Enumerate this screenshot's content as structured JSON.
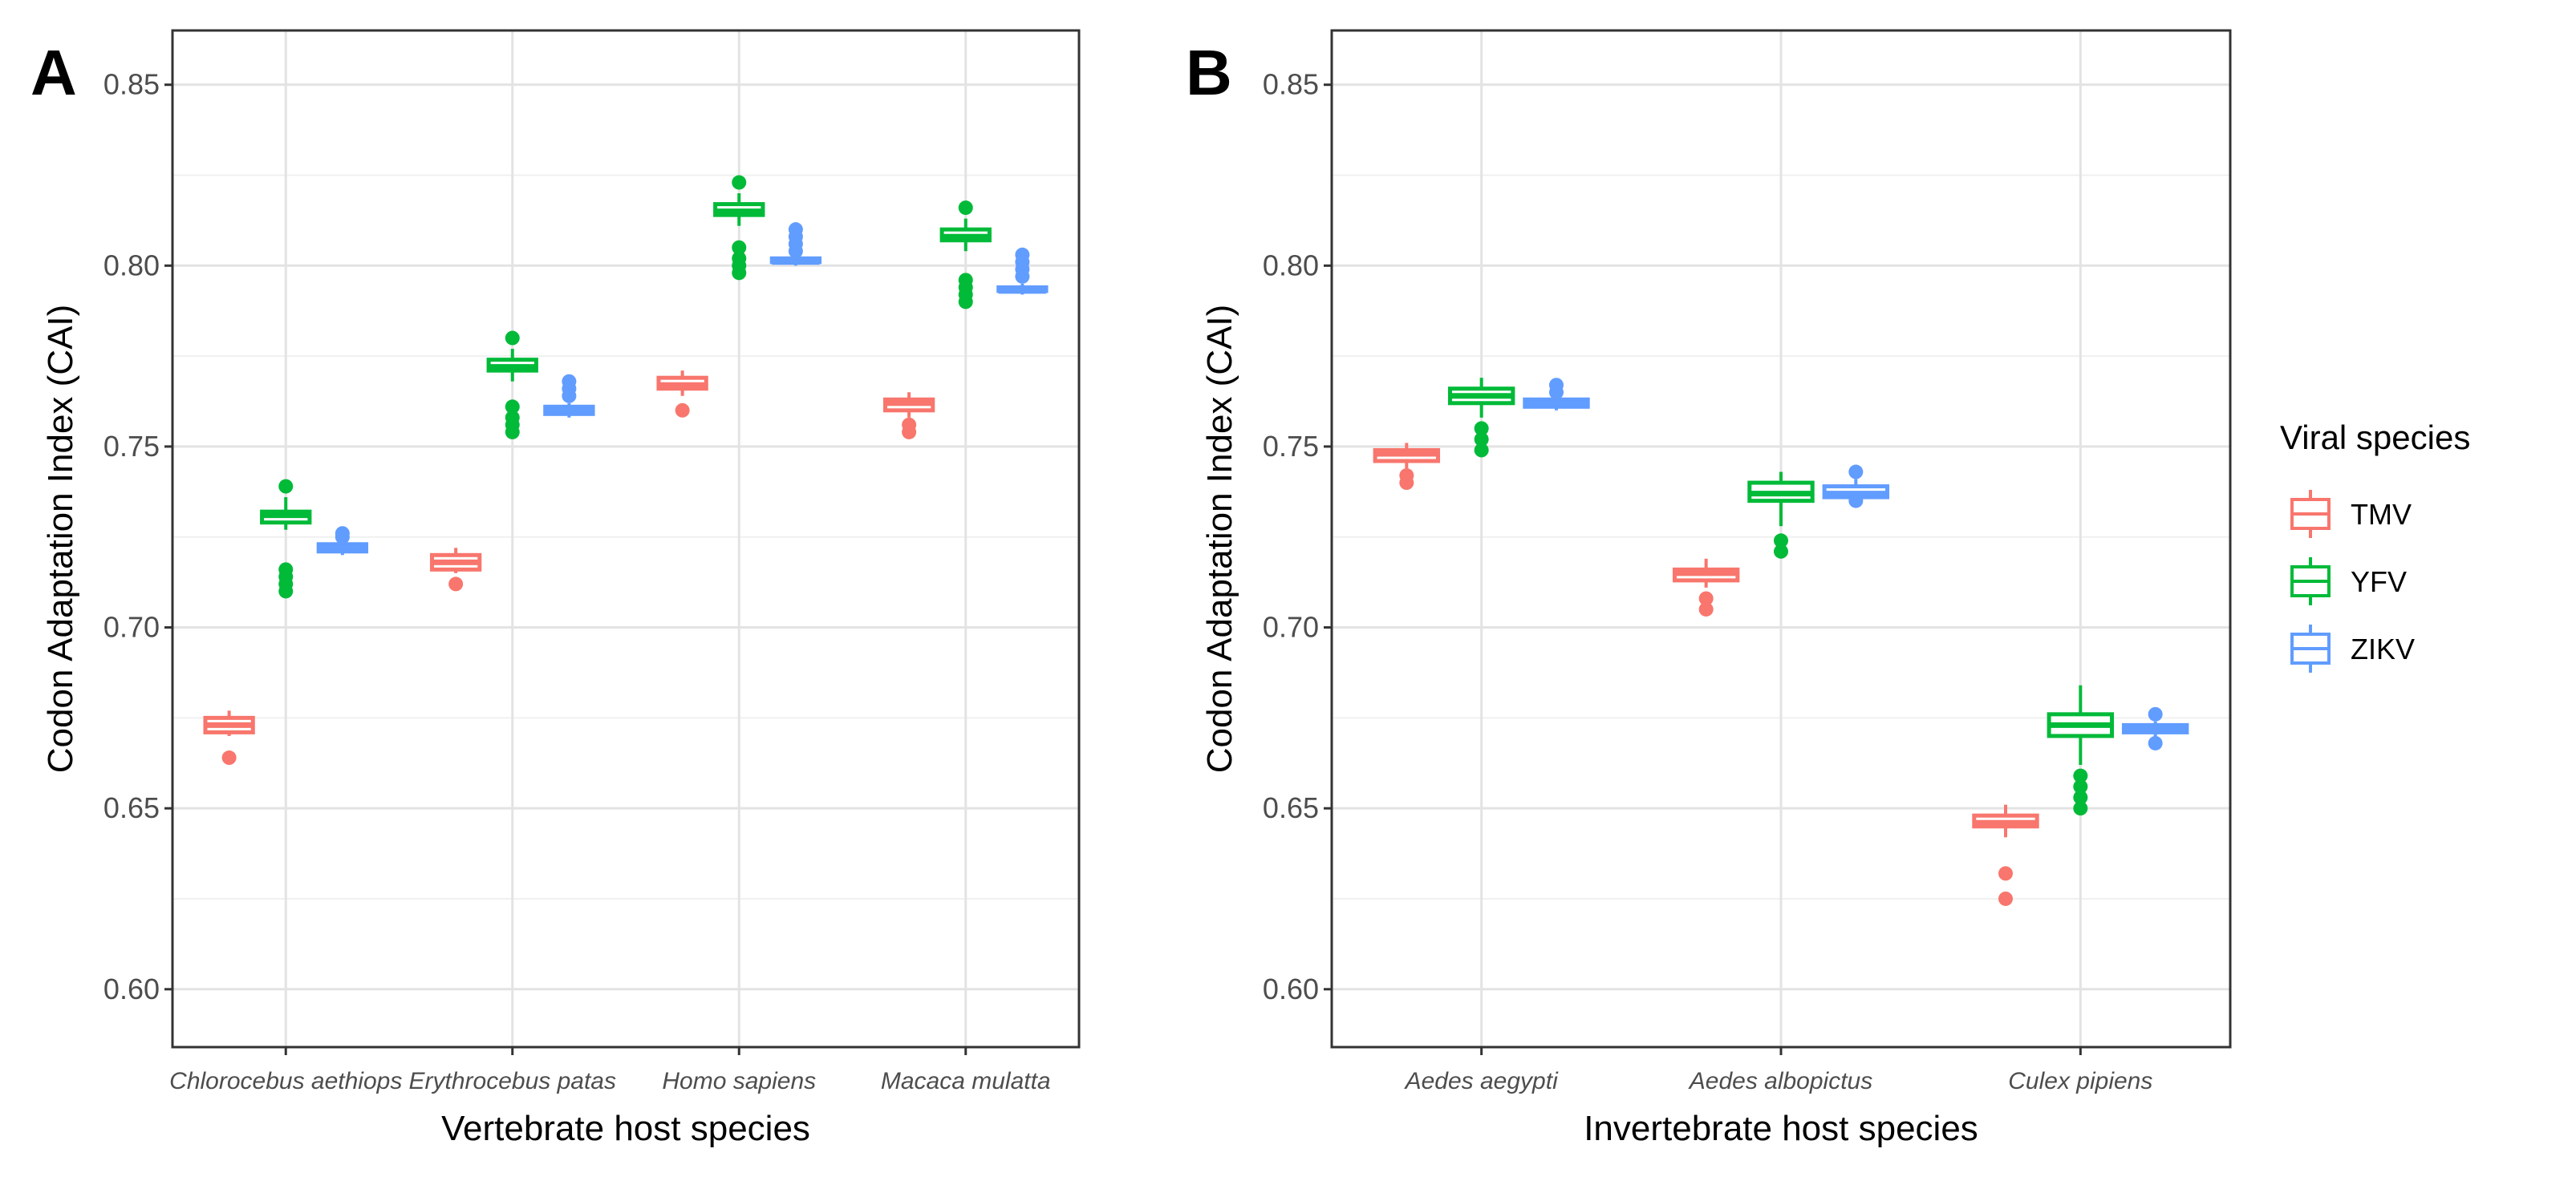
{
  "chart_data": [
    {
      "panel": "A",
      "type": "box",
      "xlabel": "Vertebrate host species",
      "ylabel": "Codon Adaptation Index (CAI)",
      "ylim": [
        0.584,
        0.865
      ],
      "yticks": [
        "0.60",
        "0.65",
        "0.70",
        "0.75",
        "0.80",
        "0.85"
      ],
      "categories": [
        "Chlorocebus aethiops",
        "Erythrocebus patas",
        "Homo sapiens",
        "Macaca mulatta"
      ],
      "series": [
        {
          "name": "TMV",
          "boxes": [
            {
              "q1": 0.671,
              "median": 0.673,
              "q3": 0.675,
              "whisker_low": 0.67,
              "whisker_high": 0.677,
              "outliers": [
                0.664
              ]
            },
            {
              "q1": 0.716,
              "median": 0.718,
              "q3": 0.72,
              "whisker_low": 0.715,
              "whisker_high": 0.722,
              "outliers": [
                0.712
              ]
            },
            {
              "q1": 0.766,
              "median": 0.767,
              "q3": 0.769,
              "whisker_low": 0.764,
              "whisker_high": 0.771,
              "outliers": [
                0.76
              ]
            },
            {
              "q1": 0.76,
              "median": 0.762,
              "q3": 0.763,
              "whisker_low": 0.758,
              "whisker_high": 0.765,
              "outliers": [
                0.754,
                0.756
              ]
            }
          ]
        },
        {
          "name": "YFV",
          "boxes": [
            {
              "q1": 0.729,
              "median": 0.731,
              "q3": 0.732,
              "whisker_low": 0.727,
              "whisker_high": 0.736,
              "outliers": [
                0.739,
                0.716,
                0.714,
                0.712,
                0.71
              ]
            },
            {
              "q1": 0.771,
              "median": 0.772,
              "q3": 0.774,
              "whisker_low": 0.768,
              "whisker_high": 0.777,
              "outliers": [
                0.78,
                0.761,
                0.758,
                0.756,
                0.754
              ]
            },
            {
              "q1": 0.814,
              "median": 0.815,
              "q3": 0.817,
              "whisker_low": 0.811,
              "whisker_high": 0.82,
              "outliers": [
                0.823,
                0.805,
                0.802,
                0.8,
                0.798
              ]
            },
            {
              "q1": 0.807,
              "median": 0.808,
              "q3": 0.81,
              "whisker_low": 0.804,
              "whisker_high": 0.813,
              "outliers": [
                0.816,
                0.796,
                0.794,
                0.792,
                0.79
              ]
            }
          ]
        },
        {
          "name": "ZIKV",
          "boxes": [
            {
              "q1": 0.721,
              "median": 0.722,
              "q3": 0.723,
              "whisker_low": 0.72,
              "whisker_high": 0.724,
              "outliers": [
                0.726,
                0.725
              ]
            },
            {
              "q1": 0.759,
              "median": 0.76,
              "q3": 0.761,
              "whisker_low": 0.758,
              "whisker_high": 0.762,
              "outliers": [
                0.768,
                0.766,
                0.764
              ]
            },
            {
              "q1": 0.801,
              "median": 0.801,
              "q3": 0.802,
              "whisker_low": 0.8,
              "whisker_high": 0.803,
              "outliers": [
                0.81,
                0.808,
                0.806,
                0.804
              ]
            },
            {
              "q1": 0.793,
              "median": 0.793,
              "q3": 0.794,
              "whisker_low": 0.792,
              "whisker_high": 0.795,
              "outliers": [
                0.803,
                0.801,
                0.799,
                0.797
              ]
            }
          ]
        }
      ]
    },
    {
      "panel": "B",
      "type": "box",
      "xlabel": "Invertebrate host species",
      "ylabel": "Codon Adaptation Index (CAI)",
      "ylim": [
        0.584,
        0.865
      ],
      "yticks": [
        "0.60",
        "0.65",
        "0.70",
        "0.75",
        "0.80",
        "0.85"
      ],
      "categories": [
        "Aedes aegypti",
        "Aedes albopictus",
        "Culex pipiens"
      ],
      "series": [
        {
          "name": "TMV",
          "boxes": [
            {
              "q1": 0.746,
              "median": 0.748,
              "q3": 0.749,
              "whisker_low": 0.744,
              "whisker_high": 0.751,
              "outliers": [
                0.74,
                0.742
              ]
            },
            {
              "q1": 0.713,
              "median": 0.715,
              "q3": 0.716,
              "whisker_low": 0.711,
              "whisker_high": 0.719,
              "outliers": [
                0.705,
                0.708
              ]
            },
            {
              "q1": 0.645,
              "median": 0.646,
              "q3": 0.648,
              "whisker_low": 0.642,
              "whisker_high": 0.651,
              "outliers": [
                0.632,
                0.625
              ]
            }
          ]
        },
        {
          "name": "YFV",
          "boxes": [
            {
              "q1": 0.762,
              "median": 0.764,
              "q3": 0.766,
              "whisker_low": 0.758,
              "whisker_high": 0.769,
              "outliers": [
                0.755,
                0.752,
                0.749
              ]
            },
            {
              "q1": 0.735,
              "median": 0.737,
              "q3": 0.74,
              "whisker_low": 0.728,
              "whisker_high": 0.743,
              "outliers": [
                0.724,
                0.721
              ]
            },
            {
              "q1": 0.67,
              "median": 0.673,
              "q3": 0.676,
              "whisker_low": 0.662,
              "whisker_high": 0.684,
              "outliers": [
                0.659,
                0.656,
                0.653,
                0.65
              ]
            }
          ]
        },
        {
          "name": "ZIKV",
          "boxes": [
            {
              "q1": 0.761,
              "median": 0.762,
              "q3": 0.763,
              "whisker_low": 0.76,
              "whisker_high": 0.765,
              "outliers": [
                0.767,
                0.765
              ]
            },
            {
              "q1": 0.736,
              "median": 0.737,
              "q3": 0.739,
              "whisker_low": 0.734,
              "whisker_high": 0.741,
              "outliers": [
                0.743,
                0.735
              ]
            },
            {
              "q1": 0.671,
              "median": 0.672,
              "q3": 0.673,
              "whisker_low": 0.669,
              "whisker_high": 0.674,
              "outliers": [
                0.676,
                0.668
              ]
            }
          ]
        }
      ]
    }
  ],
  "legend": {
    "title": "Viral species",
    "entries": [
      {
        "label": "TMV",
        "color": "#f8766d"
      },
      {
        "label": "YFV",
        "color": "#00ba38"
      },
      {
        "label": "ZIKV",
        "color": "#619cff"
      }
    ]
  }
}
